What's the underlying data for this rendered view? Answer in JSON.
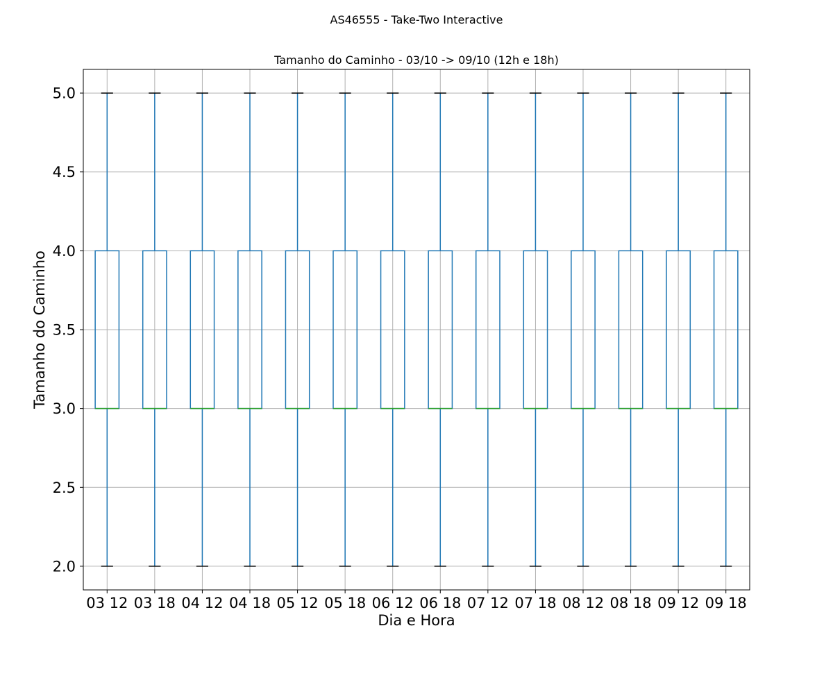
{
  "figure": {
    "suptitle": "AS46555 - Take-Two Interactive"
  },
  "chart_data": {
    "type": "box",
    "title": "Tamanho do Caminho - 03/10 -> 09/10 (12h e 18h)",
    "xlabel": "Dia e Hora",
    "ylabel": "Tamanho do Caminho",
    "ylim": [
      1.85,
      5.15
    ],
    "yticks": [
      2.0,
      2.5,
      3.0,
      3.5,
      4.0,
      4.5,
      5.0
    ],
    "ytick_labels": [
      "2.0",
      "2.5",
      "3.0",
      "3.5",
      "4.0",
      "4.5",
      "5.0"
    ],
    "grid": true,
    "colors": {
      "box": "#1f77b4",
      "median": "#2ca02c",
      "cap": "#000000",
      "grid": "#b0b0b0"
    },
    "categories": [
      "03 12",
      "03 18",
      "04 12",
      "04 18",
      "05 12",
      "05 18",
      "06 12",
      "06 18",
      "07 12",
      "07 18",
      "08 12",
      "08 18",
      "09 12",
      "09 18"
    ],
    "boxes": [
      {
        "whislo": 2,
        "q1": 3,
        "med": 3,
        "q3": 4,
        "whishi": 5
      },
      {
        "whislo": 2,
        "q1": 3,
        "med": 3,
        "q3": 4,
        "whishi": 5
      },
      {
        "whislo": 2,
        "q1": 3,
        "med": 3,
        "q3": 4,
        "whishi": 5
      },
      {
        "whislo": 2,
        "q1": 3,
        "med": 3,
        "q3": 4,
        "whishi": 5
      },
      {
        "whislo": 2,
        "q1": 3,
        "med": 3,
        "q3": 4,
        "whishi": 5
      },
      {
        "whislo": 2,
        "q1": 3,
        "med": 3,
        "q3": 4,
        "whishi": 5
      },
      {
        "whislo": 2,
        "q1": 3,
        "med": 3,
        "q3": 4,
        "whishi": 5
      },
      {
        "whislo": 2,
        "q1": 3,
        "med": 3,
        "q3": 4,
        "whishi": 5
      },
      {
        "whislo": 2,
        "q1": 3,
        "med": 3,
        "q3": 4,
        "whishi": 5
      },
      {
        "whislo": 2,
        "q1": 3,
        "med": 3,
        "q3": 4,
        "whishi": 5
      },
      {
        "whislo": 2,
        "q1": 3,
        "med": 3,
        "q3": 4,
        "whishi": 5
      },
      {
        "whislo": 2,
        "q1": 3,
        "med": 3,
        "q3": 4,
        "whishi": 5
      },
      {
        "whislo": 2,
        "q1": 3,
        "med": 3,
        "q3": 4,
        "whishi": 5
      },
      {
        "whislo": 2,
        "q1": 3,
        "med": 3,
        "q3": 4,
        "whishi": 5
      }
    ]
  }
}
